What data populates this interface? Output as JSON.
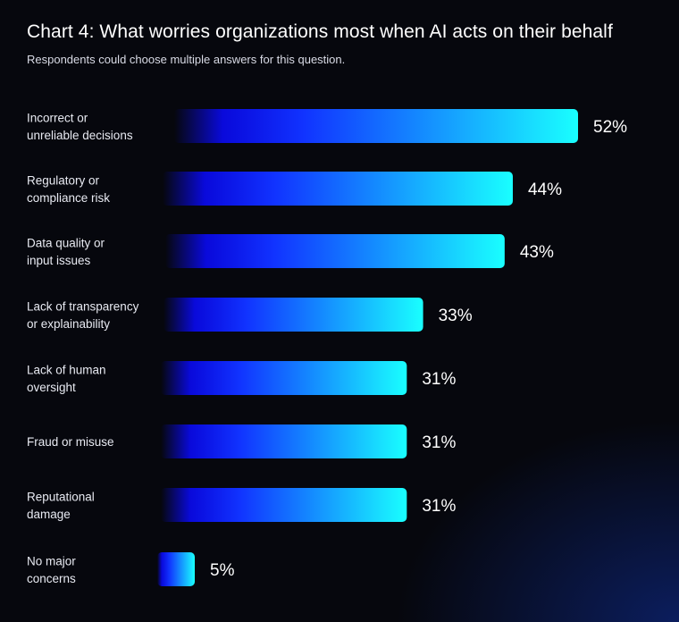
{
  "colors": {
    "background": "#06070d",
    "bar_start": "#0a0aff",
    "bar_end": "#19ffff"
  },
  "chart_data": {
    "type": "bar",
    "orientation": "horizontal",
    "title": "Chart 4: What worries organizations most when AI acts on their behalf",
    "subtitle": "Respondents could choose multiple answers for this question.",
    "categories": [
      [
        "Incorrect or",
        "unreliable decisions"
      ],
      [
        "Regulatory or",
        "compliance risk"
      ],
      [
        "Data quality or",
        "input issues"
      ],
      [
        "Lack of transparency",
        "or explainability"
      ],
      [
        "Lack of human",
        "oversight"
      ],
      [
        "Fraud or misuse"
      ],
      [
        "Reputational",
        "damage"
      ],
      [
        "No major",
        "concerns"
      ]
    ],
    "values": [
      52,
      44,
      43,
      33,
      31,
      31,
      31,
      5
    ],
    "value_labels": [
      "52%",
      "44%",
      "43%",
      "33%",
      "31%",
      "31%",
      "31%",
      "5%"
    ],
    "unit": "%",
    "grid": false,
    "legend": "none"
  }
}
